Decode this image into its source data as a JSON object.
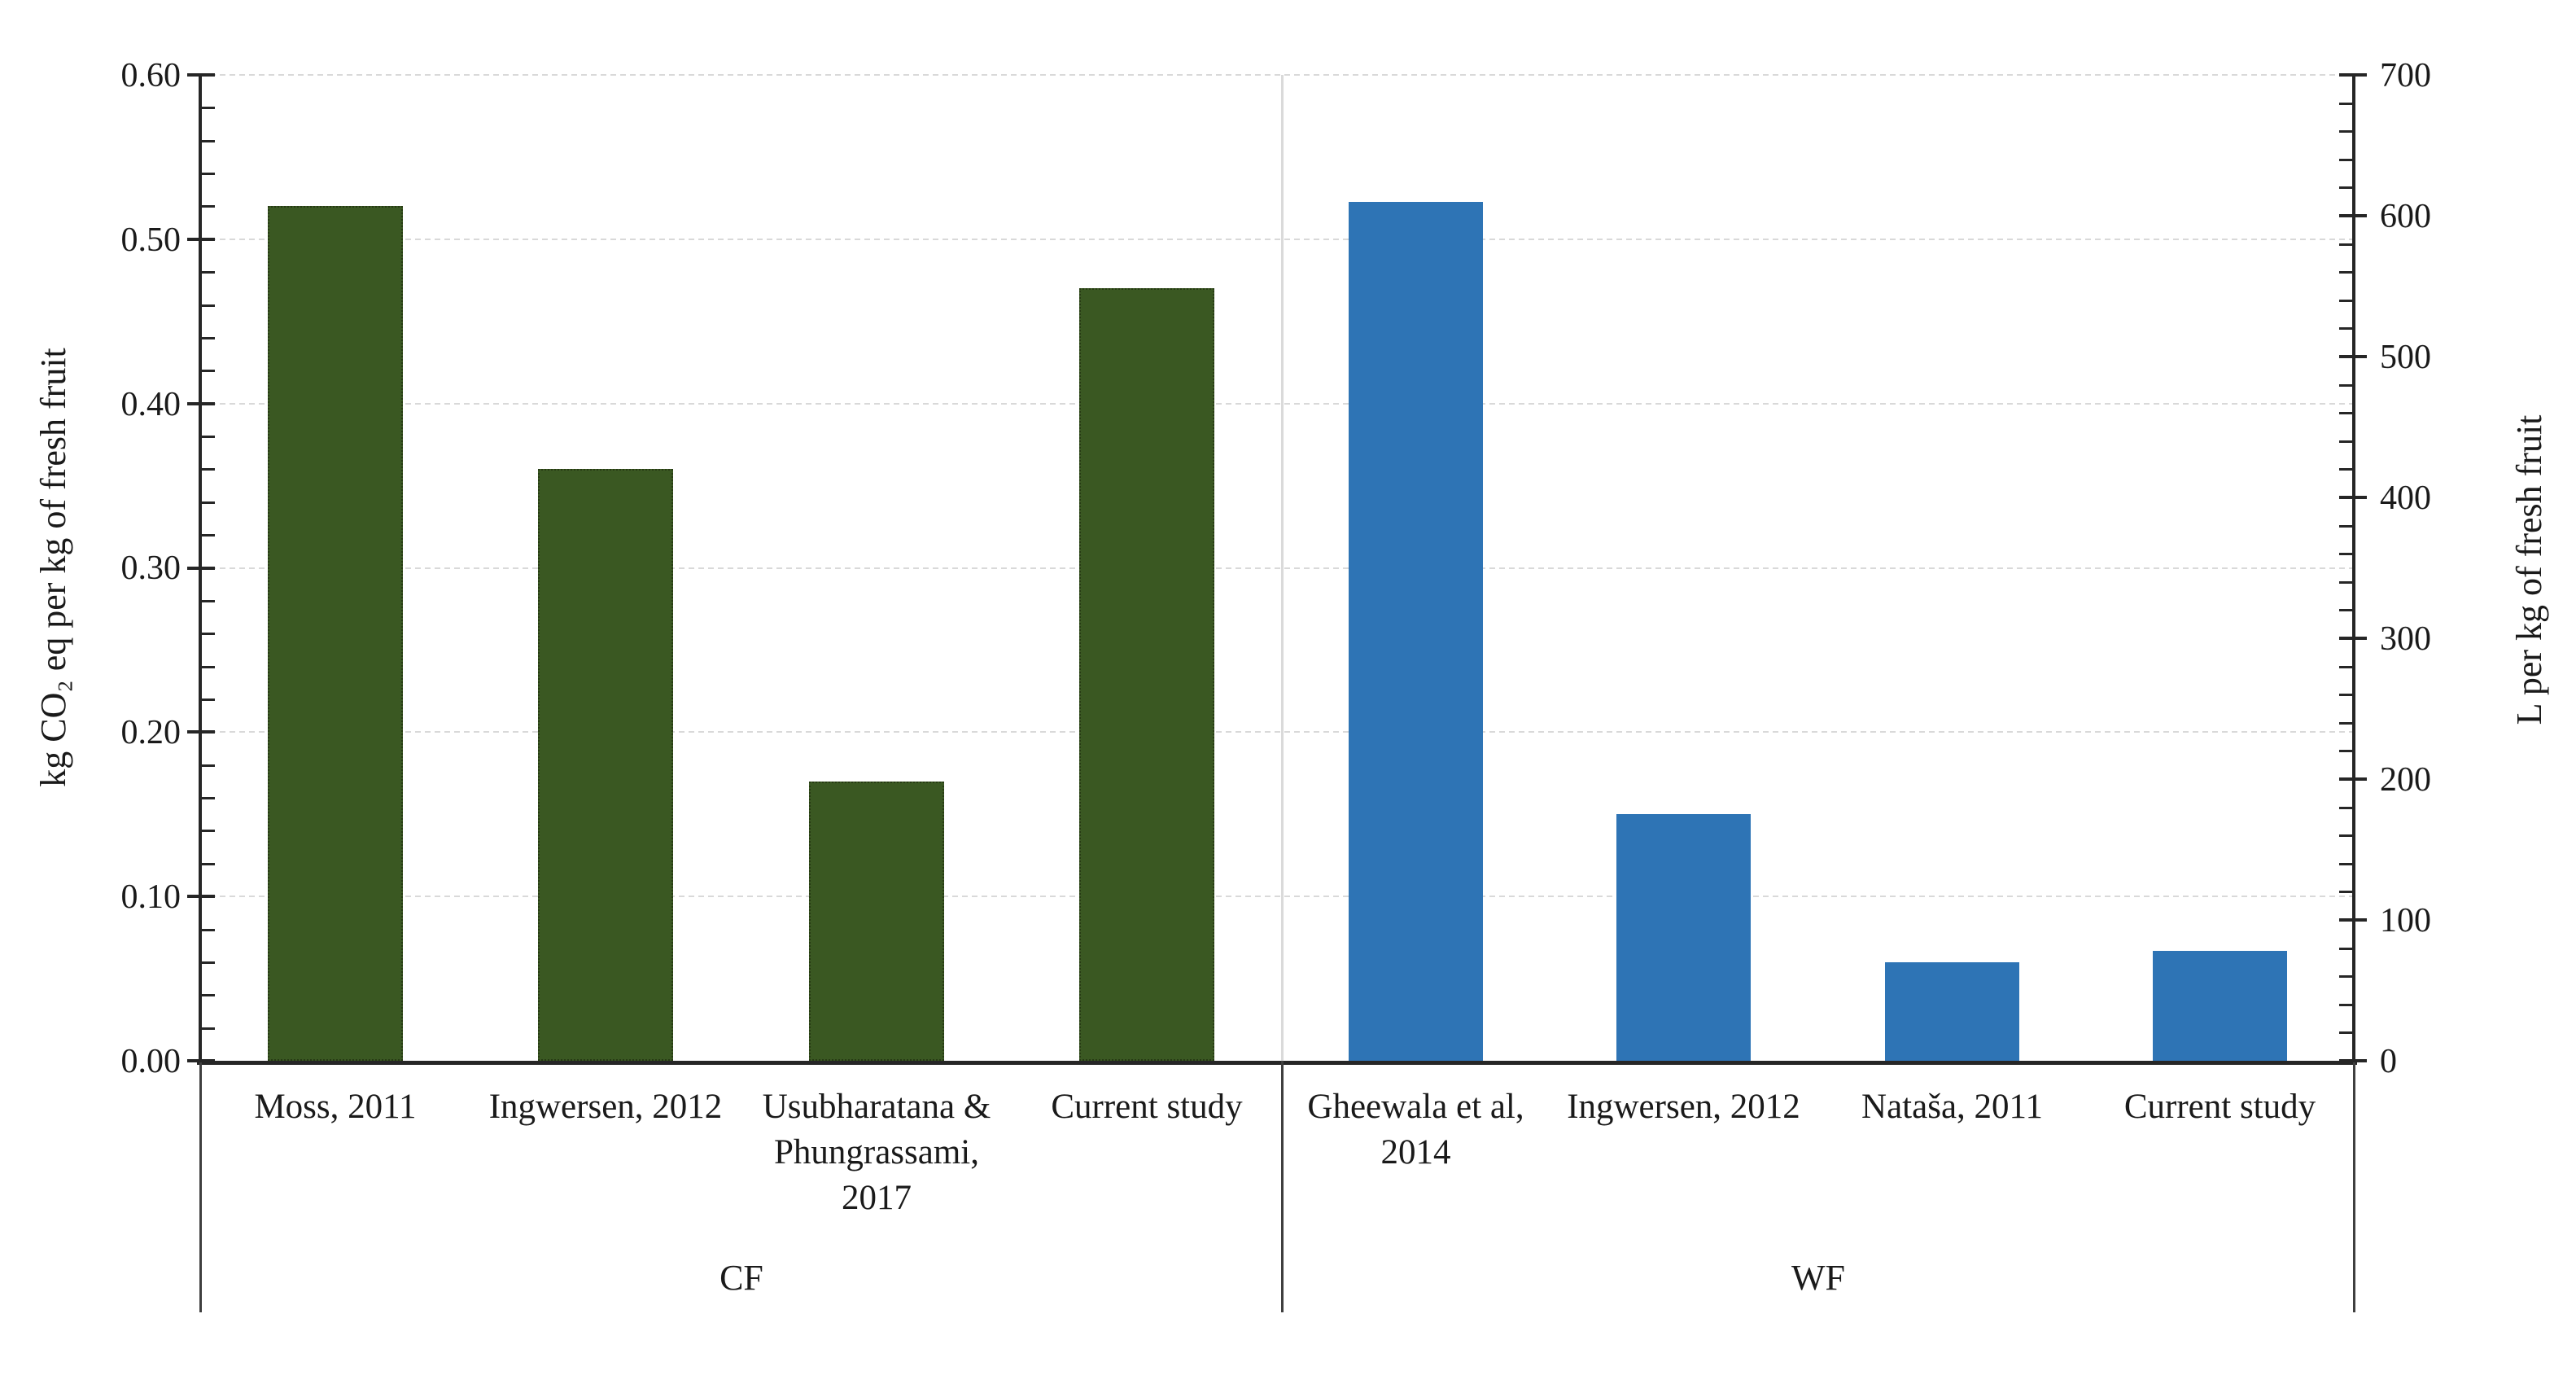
{
  "chart_data": {
    "type": "bar",
    "title": "",
    "description": "Dual-axis grouped bar chart comparing carbon footprint (CF) and water footprint (WF) literature values per kg of fresh fruit",
    "left_axis": {
      "title": "kg CO₂ eq per kg of fresh fruit",
      "min": 0,
      "max": 0.6,
      "major_step": 0.1,
      "minor_step": 0.02,
      "tick_labels": [
        "0.00",
        "0.10",
        "0.20",
        "0.30",
        "0.40",
        "0.50",
        "0.60"
      ]
    },
    "right_axis": {
      "title": "L per kg of fresh fruit",
      "min": 0,
      "max": 700,
      "major_step": 100,
      "minor_step": 20,
      "tick_labels": [
        "0",
        "100",
        "200",
        "300",
        "400",
        "500",
        "600",
        "700"
      ]
    },
    "grid": {
      "visible": true,
      "values": [
        0.1,
        0.2,
        0.3,
        0.4,
        0.5,
        0.6
      ]
    },
    "legend": {
      "visible": false
    },
    "colors": {
      "cf_bar": "#3A5822",
      "wf_bar": "#2E74B5",
      "gridline": "#D9D9D9",
      "axis": "#262626",
      "divider_light": "#DADADA",
      "divider_dark": "#3F3F3F",
      "text": "#1A1A1A"
    },
    "groups": [
      {
        "label": "CF",
        "axis": "left",
        "bar_color": "#3A5822",
        "bars": [
          {
            "label": "Moss, 2011",
            "lines": [
              "Moss, 2011"
            ],
            "value": 0.52
          },
          {
            "label": "Ingwersen, 2012",
            "lines": [
              "Ingwersen, 2012"
            ],
            "value": 0.36
          },
          {
            "label": "Usubharatana & Phungrassami, 2017",
            "lines": [
              "Usubharatana &",
              "Phungrassami,",
              "2017"
            ],
            "value": 0.17
          },
          {
            "label": "Current study",
            "lines": [
              "Current study"
            ],
            "value": 0.47
          }
        ]
      },
      {
        "label": "WF",
        "axis": "right",
        "bar_color": "#2E74B5",
        "bars": [
          {
            "label": "Gheewala et al, 2014",
            "lines": [
              "Gheewala et al,",
              "2014"
            ],
            "value": 610
          },
          {
            "label": "Ingwersen, 2012",
            "lines": [
              "Ingwersen, 2012"
            ],
            "value": 175
          },
          {
            "label": "Nataša, 2011",
            "lines": [
              "Nataša, 2011"
            ],
            "value": 70
          },
          {
            "label": "Current study",
            "lines": [
              "Current study"
            ],
            "value": 78
          }
        ]
      }
    ]
  }
}
